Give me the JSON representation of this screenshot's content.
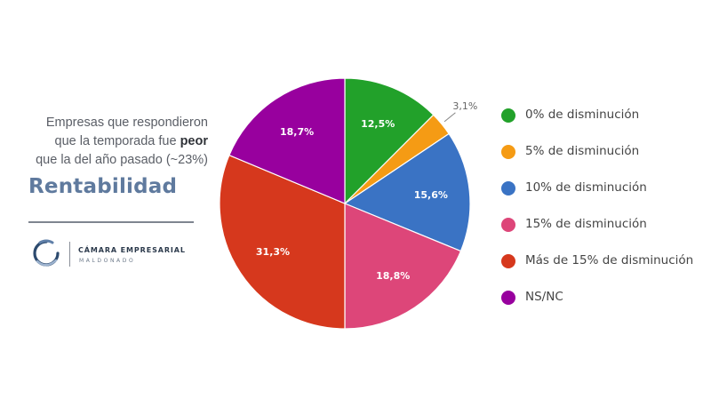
{
  "panel": {
    "subtitle_line1": "Empresas que respondieron",
    "subtitle_line2_pre": "que la temporada fue ",
    "subtitle_line2_bold": "peor",
    "subtitle_line3": "que la del año pasado (~23%)",
    "title": "Rentabilidad",
    "logo": {
      "icon": "camara-empresarial-logo-icon",
      "name": "CÁMARA EMPRESARIAL",
      "place": "MALDONADO"
    }
  },
  "chart_data": {
    "type": "pie",
    "slices": [
      {
        "label": "0% de disminución",
        "value": 12.5,
        "display": "12,5%",
        "color": "#22a12a"
      },
      {
        "label": "5% de disminución",
        "value": 3.1,
        "display": "3,1%",
        "color": "#f59b14"
      },
      {
        "label": "10% de disminución",
        "value": 15.6,
        "display": "15,6%",
        "color": "#3a73c4"
      },
      {
        "label": "15% de disminución",
        "value": 18.8,
        "display": "18,8%",
        "color": "#dd4679"
      },
      {
        "label": "Más de 15% de disminución",
        "value": 31.3,
        "display": "31,3%",
        "color": "#d6381d"
      },
      {
        "label": "NS/NC",
        "value": 18.7,
        "display": "18,7%",
        "color": "#98009e"
      }
    ],
    "start": "top",
    "direction": "clockwise",
    "legend_position": "right"
  }
}
